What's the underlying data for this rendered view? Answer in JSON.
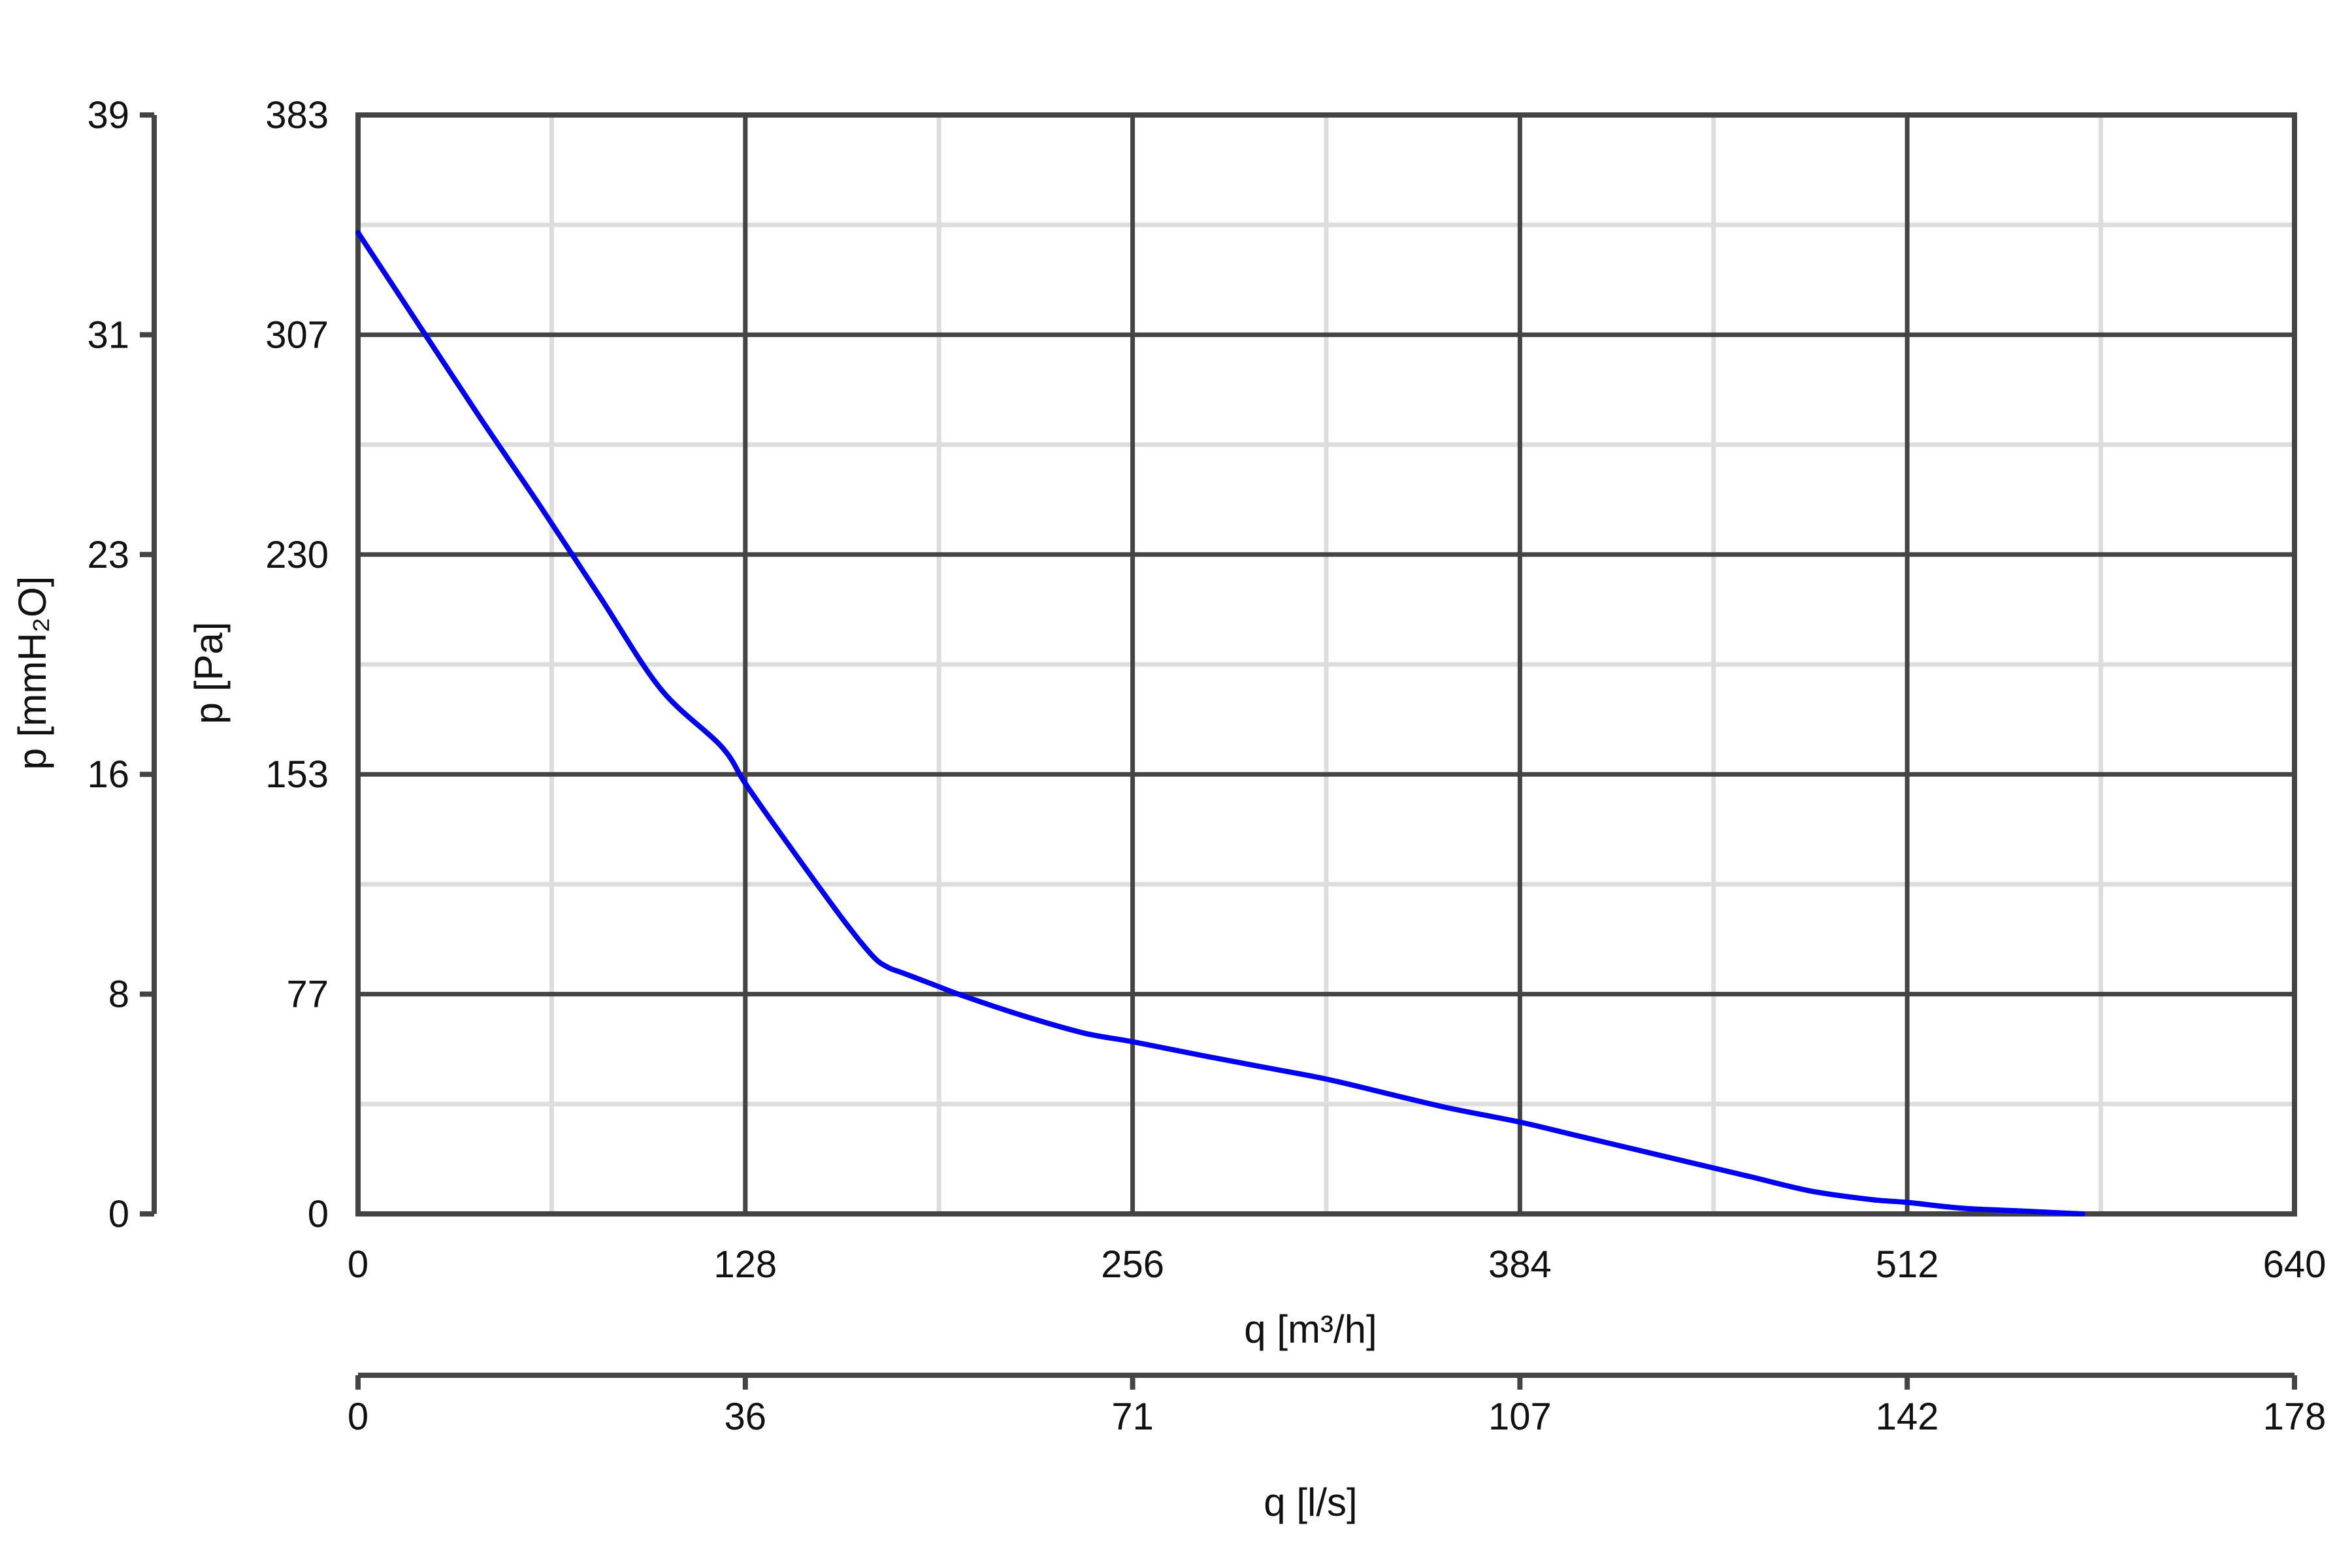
{
  "chart_data": {
    "type": "line",
    "title": "",
    "xlabel": "q [m³/h]",
    "ylabel": "p [Pa]",
    "xlim": [
      0,
      640
    ],
    "ylim": [
      0,
      383
    ],
    "grid": true,
    "x_ticks": [
      "0",
      "128",
      "256",
      "384",
      "512",
      "640"
    ],
    "y_ticks": [
      "0",
      "77",
      "153",
      "230",
      "307",
      "383"
    ],
    "secondary_x_axis": {
      "label": "q [l/s]",
      "ticks": [
        "0",
        "36",
        "71",
        "107",
        "142",
        "178"
      ]
    },
    "secondary_y_axis": {
      "label": "p [mmH₂O]",
      "ticks": [
        "0",
        "8",
        "16",
        "23",
        "31",
        "39"
      ]
    },
    "series": [
      {
        "color": "#0000ee",
        "x": [
          0,
          20,
          40,
          60,
          80,
          100,
          120,
          128,
          140,
          160,
          170,
          175,
          180,
          190,
          200,
          220,
          240,
          256,
          280,
          300,
          320,
          340,
          360,
          384,
          400,
          420,
          440,
          460,
          480,
          500,
          512,
          530,
          550,
          570
        ],
        "y": [
          342,
          310,
          278,
          247,
          215,
          183,
          163,
          150,
          132,
          103,
          90,
          86,
          84,
          80,
          76,
          69,
          63,
          60,
          55,
          51,
          47,
          42,
          37,
          32,
          28,
          23,
          18,
          13,
          8,
          5,
          4,
          2,
          1,
          0
        ]
      }
    ]
  }
}
